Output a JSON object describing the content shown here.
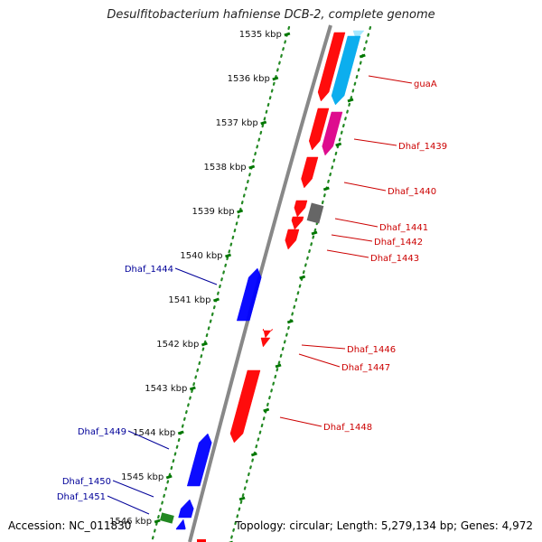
{
  "title": "Desulfitobacterium hafniense DCB-2, complete genome",
  "footer": {
    "accession": "Accession: NC_011830",
    "topology": "Topology: circular; Length: 5,279,134 bp; Genes: 4,972"
  },
  "colors": {
    "forward_gene": "#ff0000",
    "reverse_gene": "#0000ff",
    "rrna": "#00aaee",
    "misc": "#dd0088",
    "pseudo": "#666666",
    "trna": "#228822",
    "tick": "#007700",
    "dots": "#228822",
    "backbone": "#888888",
    "label_forward": "#cc0000",
    "label_reverse": "#000099"
  },
  "scale_ticks": [
    {
      "kbp": 1535,
      "label": "1535 kbp"
    },
    {
      "kbp": 1536,
      "label": "1536 kbp"
    },
    {
      "kbp": 1537,
      "label": "1537 kbp"
    },
    {
      "kbp": 1538,
      "label": "1538 kbp"
    },
    {
      "kbp": 1539,
      "label": "1539 kbp"
    },
    {
      "kbp": 1540,
      "label": "1540 kbp"
    },
    {
      "kbp": 1541,
      "label": "1541 kbp"
    },
    {
      "kbp": 1542,
      "label": "1542 kbp"
    },
    {
      "kbp": 1543,
      "label": "1543 kbp"
    },
    {
      "kbp": 1544,
      "label": "1544 kbp"
    },
    {
      "kbp": 1545,
      "label": "1545 kbp"
    },
    {
      "kbp": 1546,
      "label": "1546 kbp"
    }
  ],
  "gene_labels": [
    {
      "name": "guaA",
      "strand": "forward"
    },
    {
      "name": "Dhaf_1439",
      "strand": "forward"
    },
    {
      "name": "Dhaf_1440",
      "strand": "forward"
    },
    {
      "name": "Dhaf_1441",
      "strand": "forward"
    },
    {
      "name": "Dhaf_1442",
      "strand": "forward"
    },
    {
      "name": "Dhaf_1443",
      "strand": "forward"
    },
    {
      "name": "Dhaf_1446",
      "strand": "forward"
    },
    {
      "name": "Dhaf_1447",
      "strand": "forward"
    },
    {
      "name": "Dhaf_1448",
      "strand": "forward"
    },
    {
      "name": "Dhaf_1444",
      "strand": "reverse"
    },
    {
      "name": "Dhaf_1449",
      "strand": "reverse"
    },
    {
      "name": "Dhaf_1450",
      "strand": "reverse"
    },
    {
      "name": "Dhaf_1451",
      "strand": "reverse"
    }
  ]
}
